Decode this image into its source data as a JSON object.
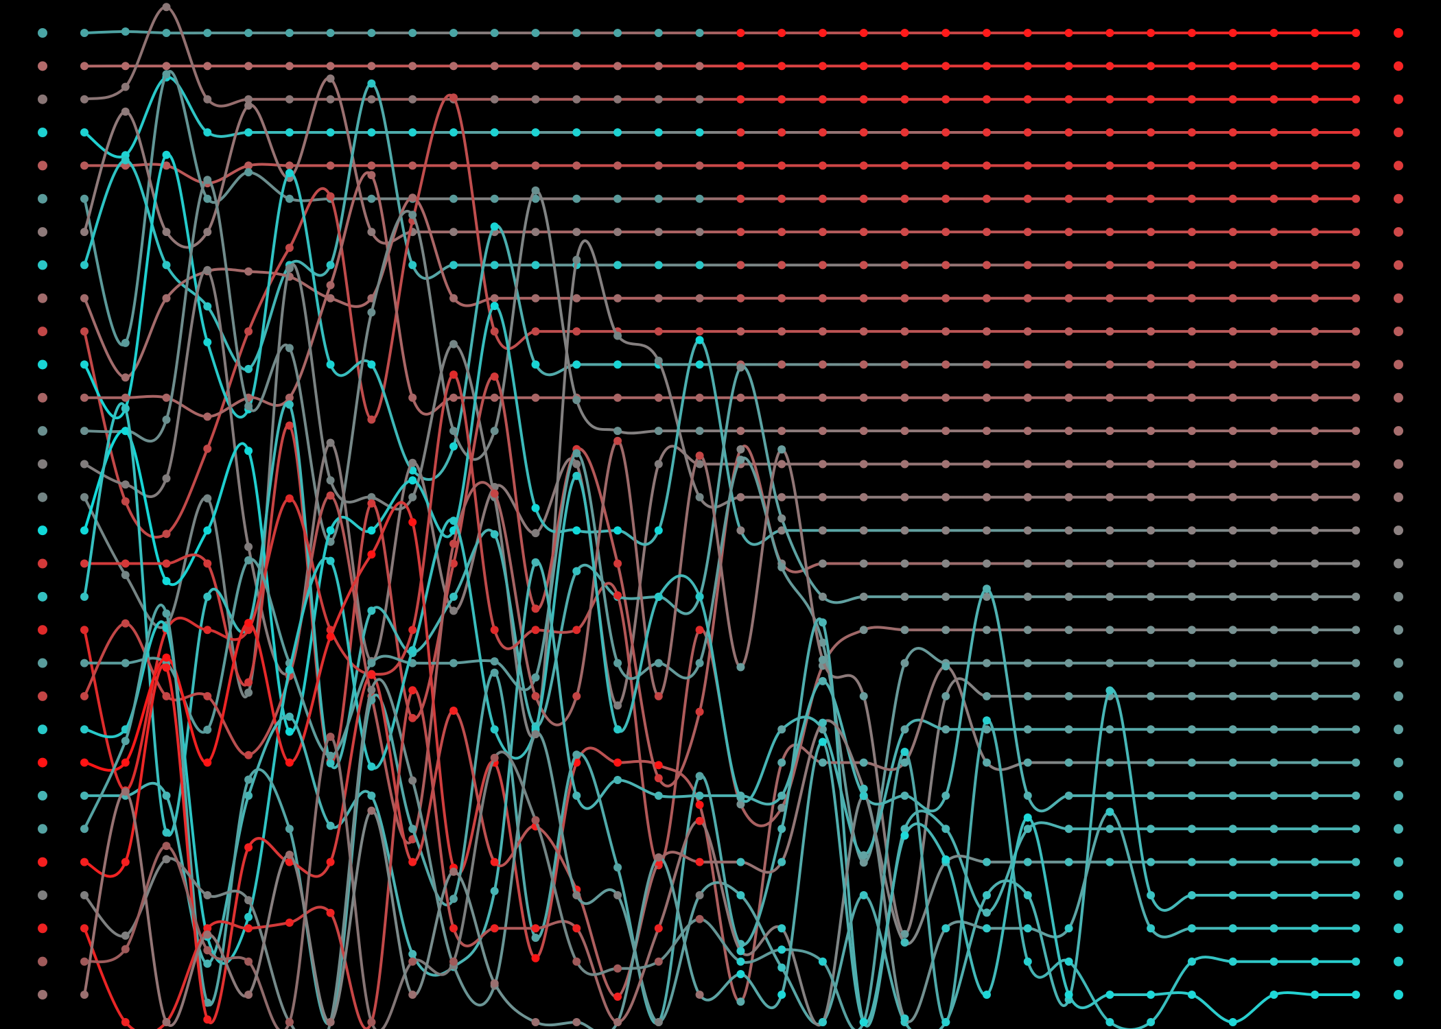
{
  "artwork": {
    "background": "#000000",
    "line_count": 30,
    "rows": [
      {
        "start_color": "#4aa5a5",
        "end_color": "#ff1a1a"
      },
      {
        "start_color": "#b36b6b",
        "end_color": "#f72424"
      },
      {
        "start_color": "#8a7676",
        "end_color": "#ee2b2b"
      },
      {
        "start_color": "#1ed2d2",
        "end_color": "#e63333"
      },
      {
        "start_color": "#b85a5a",
        "end_color": "#de3a3a"
      },
      {
        "start_color": "#5a9b9b",
        "end_color": "#d64141"
      },
      {
        "start_color": "#8e7a7a",
        "end_color": "#ce4848"
      },
      {
        "start_color": "#2bc6c6",
        "end_color": "#c74f4f"
      },
      {
        "start_color": "#a26c6c",
        "end_color": "#c05555"
      },
      {
        "start_color": "#c24747",
        "end_color": "#b95c5c"
      },
      {
        "start_color": "#19d5d5",
        "end_color": "#b26262"
      },
      {
        "start_color": "#a96565",
        "end_color": "#ac6868"
      },
      {
        "start_color": "#6a8f8f",
        "end_color": "#a66e6e"
      },
      {
        "start_color": "#817c7c",
        "end_color": "#a07373"
      },
      {
        "start_color": "#748585",
        "end_color": "#9b7777"
      },
      {
        "start_color": "#11dada",
        "end_color": "#8c8181"
      },
      {
        "start_color": "#d33939",
        "end_color": "#868686"
      },
      {
        "start_color": "#35c1c1",
        "end_color": "#7e8b8b"
      },
      {
        "start_color": "#e02a2a",
        "end_color": "#779191"
      },
      {
        "start_color": "#5a9d9d",
        "end_color": "#6f9797"
      },
      {
        "start_color": "#c44545",
        "end_color": "#689d9d"
      },
      {
        "start_color": "#28c9c9",
        "end_color": "#61a3a3"
      },
      {
        "start_color": "#ff1414",
        "end_color": "#5aa9a9"
      },
      {
        "start_color": "#47b5b5",
        "end_color": "#52b0b0"
      },
      {
        "start_color": "#55a3a3",
        "end_color": "#4bb6b6"
      },
      {
        "start_color": "#f51f1f",
        "end_color": "#43bcbc"
      },
      {
        "start_color": "#7f7f7f",
        "end_color": "#3bc3c3"
      },
      {
        "start_color": "#ee2222",
        "end_color": "#32c9c9"
      },
      {
        "start_color": "#a05a5a",
        "end_color": "#27d0d0"
      },
      {
        "start_color": "#9a7070",
        "end_color": "#1ed8d8"
      }
    ],
    "paths": [
      {
        "start_row": 22,
        "color": "#ff1a1a",
        "excursions": [
          [
            0.0,
            -0.6
          ],
          [
            0.06,
            0.4
          ]
        ]
      },
      {
        "start_row": 1,
        "color": "#f72424",
        "excursions": [
          [
            0.1,
            0.5
          ],
          [
            0.13,
            -0.4
          ]
        ]
      },
      {
        "start_row": 2,
        "color": "#ee2b2b",
        "excursions": [
          [
            0.12,
            0.6
          ],
          [
            0.16,
            -0.5
          ]
        ]
      },
      {
        "start_row": 3,
        "color": "#e63333",
        "excursions": [
          [
            0.15,
            0.5
          ],
          [
            0.2,
            -0.5
          ]
        ]
      },
      {
        "start_row": 4,
        "color": "#de3a3a",
        "excursions": [
          [
            0.18,
            0.6
          ],
          [
            0.23,
            -0.4
          ]
        ]
      },
      {
        "start_row": 5,
        "color": "#d64141",
        "excursions": [
          [
            0.21,
            0.5
          ],
          [
            0.26,
            -0.5
          ]
        ]
      }
    ]
  }
}
